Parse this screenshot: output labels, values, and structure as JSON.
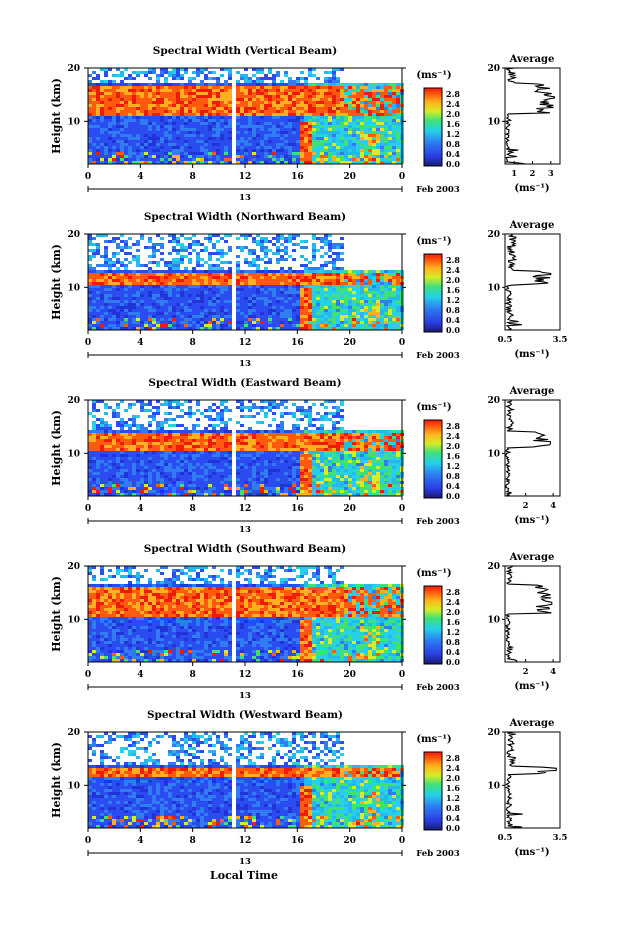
{
  "figure": {
    "height_axis_label": "Height (km)",
    "local_time_label": "Local Time",
    "date_label": "Feb 2003",
    "day_label": "13",
    "time_ticks": [
      "0",
      "4",
      "8",
      "12",
      "16",
      "20",
      "0"
    ],
    "height_ticks": [
      "20",
      "10"
    ],
    "colorbar_unit": "(ms⁻¹)",
    "colorbar_ticks": [
      "2.8",
      "2.4",
      "2.0",
      "1.6",
      "1.2",
      "0.8",
      "0.4",
      "0.0"
    ],
    "average_title": "Average",
    "average_unit": "(ms⁻¹)"
  },
  "chart_data": [
    {
      "type": "heatmap",
      "title": "Spectral Width (Vertical Beam)",
      "xlabel": "",
      "ylabel": "Height (km)",
      "xlim": [
        0,
        24
      ],
      "ylim": [
        2,
        20
      ],
      "clim": [
        0,
        3.0
      ],
      "colorbar_label": "(ms⁻¹)",
      "features": {
        "red_band_km": [
          11.5,
          17
        ],
        "data_gap_hours": [
          10.8,
          11.2
        ],
        "no_data_after_h": 20
      },
      "average_profile": {
        "title": "Average",
        "x_ticks": [
          "1",
          "2",
          "3"
        ],
        "xlim": [
          0.5,
          3.5
        ],
        "peak_value": 3.2,
        "peak_height_km": 14.5
      }
    },
    {
      "type": "heatmap",
      "title": "Spectral Width (Northward Beam)",
      "xlabel": "",
      "ylabel": "Height (km)",
      "xlim": [
        0,
        24
      ],
      "ylim": [
        2,
        20
      ],
      "clim": [
        0,
        3.0
      ],
      "colorbar_label": "(ms⁻¹)",
      "features": {
        "red_band_km": [
          10.5,
          13
        ],
        "data_gap_hours": [
          10.8,
          11.2
        ]
      },
      "average_profile": {
        "title": "Average",
        "x_ticks": [
          "0.5",
          "3.5"
        ],
        "xlim": [
          0.5,
          3.5
        ],
        "peak_value": 3.0,
        "peak_height_km": 12.5
      }
    },
    {
      "type": "heatmap",
      "title": "Spectral Width (Eastward Beam)",
      "xlabel": "",
      "ylabel": "Height (km)",
      "xlim": [
        0,
        24
      ],
      "ylim": [
        2,
        20
      ],
      "clim": [
        0,
        3.0
      ],
      "colorbar_label": "(ms⁻¹)",
      "features": {
        "red_band_km": [
          11,
          14
        ],
        "data_gap_hours": [
          10.8,
          11.2
        ]
      },
      "average_profile": {
        "title": "Average",
        "x_ticks": [
          "2",
          "4"
        ],
        "xlim": [
          0.5,
          4.5
        ],
        "peak_value": 3.8,
        "peak_height_km": 12
      }
    },
    {
      "type": "heatmap",
      "title": "Spectral Width (Southward Beam)",
      "xlabel": "",
      "ylabel": "Height (km)",
      "xlim": [
        0,
        24
      ],
      "ylim": [
        2,
        20
      ],
      "clim": [
        0,
        3.0
      ],
      "colorbar_label": "(ms⁻¹)",
      "features": {
        "red_band_km": [
          11,
          16.5
        ],
        "data_gap_hours": [
          10.8,
          11.2
        ]
      },
      "average_profile": {
        "title": "Average",
        "x_ticks": [
          "2",
          "4"
        ],
        "xlim": [
          0.5,
          4.5
        ],
        "peak_value": 3.9,
        "peak_height_km": 13
      }
    },
    {
      "type": "heatmap",
      "title": "Spectral Width (Westward Beam)",
      "xlabel": "",
      "ylabel": "Height (km)",
      "xlim": [
        0,
        24
      ],
      "ylim": [
        2,
        20
      ],
      "clim": [
        0,
        3.0
      ],
      "colorbar_label": "(ms⁻¹)",
      "features": {
        "red_band_km": [
          12,
          13.5
        ],
        "data_gap_hours": [
          10.8,
          11.2
        ]
      },
      "average_profile": {
        "title": "Average",
        "x_ticks": [
          "0.5",
          "3.5"
        ],
        "xlim": [
          0.5,
          3.5
        ],
        "peak_value": 3.3,
        "peak_height_km": 13
      }
    }
  ]
}
